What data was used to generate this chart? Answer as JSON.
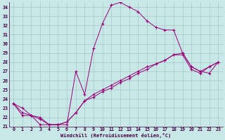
{
  "xlabel": "Windchill (Refroidissement éolien,°C)",
  "bg_color": "#c8e8e8",
  "line_color": "#990077",
  "grid_color": "#a8c8c8",
  "xlim": [
    -0.5,
    23.5
  ],
  "ylim": [
    21,
    34.5
  ],
  "yticks": [
    21,
    22,
    23,
    24,
    25,
    26,
    27,
    28,
    29,
    30,
    31,
    32,
    33,
    34
  ],
  "xticks": [
    0,
    1,
    2,
    3,
    4,
    5,
    6,
    7,
    8,
    9,
    10,
    11,
    12,
    13,
    14,
    15,
    16,
    17,
    18,
    19,
    20,
    21,
    22,
    23
  ],
  "line1_x": [
    0,
    1,
    2,
    3,
    4,
    5,
    6,
    7,
    8,
    9,
    10,
    11,
    12,
    13,
    14,
    15,
    16,
    17,
    18,
    19,
    20,
    21,
    22,
    23
  ],
  "line1_y": [
    23.5,
    23.0,
    22.2,
    21.2,
    21.2,
    21.2,
    21.2,
    27.0,
    24.5,
    29.5,
    32.2,
    34.2,
    34.5,
    34.0,
    33.5,
    32.5,
    31.8,
    31.5,
    31.5,
    29.0,
    27.5,
    27.0,
    27.5,
    28.0
  ],
  "line2_x": [
    0,
    1,
    2,
    3,
    4,
    5,
    6,
    7,
    8,
    9,
    10,
    11,
    12,
    13,
    14,
    15,
    16,
    17,
    18,
    19,
    20,
    21,
    22,
    23
  ],
  "line2_y": [
    23.5,
    22.2,
    22.2,
    22.0,
    21.2,
    21.2,
    21.5,
    22.5,
    23.8,
    24.5,
    25.0,
    25.5,
    26.0,
    26.5,
    27.0,
    27.5,
    27.8,
    28.2,
    28.8,
    28.8,
    27.2,
    26.8,
    27.5,
    28.0
  ],
  "line3_x": [
    0,
    1,
    2,
    3,
    4,
    5,
    6,
    7,
    8,
    9,
    10,
    11,
    12,
    13,
    14,
    15,
    16,
    17,
    18,
    19,
    20,
    21,
    22,
    23
  ],
  "line3_y": [
    23.5,
    22.5,
    22.2,
    21.8,
    21.2,
    21.2,
    21.5,
    22.5,
    23.8,
    24.2,
    24.8,
    25.2,
    25.8,
    26.2,
    26.8,
    27.2,
    27.8,
    28.2,
    28.8,
    29.0,
    27.5,
    27.0,
    26.8,
    28.0
  ]
}
